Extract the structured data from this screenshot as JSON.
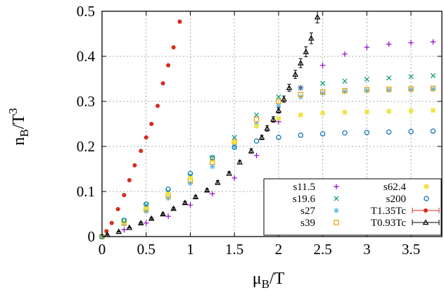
{
  "chart_data": {
    "type": "scatter",
    "title": "",
    "xlabel": {
      "main": "μ",
      "sub": "B",
      "tail": "/T"
    },
    "ylabel": {
      "main": "n",
      "sub": "B",
      "tail": "/T",
      "sup": "3"
    },
    "xlim": [
      0,
      3.85
    ],
    "ylim": [
      0,
      0.5
    ],
    "xticks": [
      0,
      0.5,
      1,
      1.5,
      2,
      2.5,
      3,
      3.5
    ],
    "xtick_labels": [
      "0",
      "0.5",
      "1",
      "1.5",
      "2",
      "2.5",
      "3",
      "3.5"
    ],
    "yticks": [
      0,
      0.1,
      0.2,
      0.3,
      0.4,
      0.5
    ],
    "ytick_labels": [
      "0",
      "0.1",
      "0.2",
      "0.3",
      "0.4",
      "0.5"
    ],
    "grid": true,
    "legend_position": "bottom-right",
    "series": [
      {
        "name": "s11.5",
        "color": "#9400d3",
        "marker": "plus",
        "x": [
          0,
          0.25,
          0.5,
          0.75,
          1.0,
          1.25,
          1.5,
          1.75,
          2.0,
          2.25,
          2.5,
          2.75,
          3.0,
          3.25,
          3.5,
          3.75
        ],
        "y": [
          0,
          0.015,
          0.03,
          0.045,
          0.07,
          0.095,
          0.13,
          0.18,
          0.255,
          0.33,
          0.38,
          0.405,
          0.42,
          0.427,
          0.43,
          0.432
        ]
      },
      {
        "name": "s19.6",
        "color": "#009e73",
        "marker": "cross",
        "x": [
          0,
          0.25,
          0.5,
          0.75,
          1.0,
          1.25,
          1.5,
          1.75,
          2.0,
          2.25,
          2.5,
          2.75,
          3.0,
          3.25,
          3.5,
          3.75
        ],
        "y": [
          0,
          0.035,
          0.07,
          0.1,
          0.135,
          0.175,
          0.22,
          0.27,
          0.31,
          0.33,
          0.34,
          0.345,
          0.349,
          0.352,
          0.355,
          0.357
        ]
      },
      {
        "name": "s27",
        "color": "#56b4e9",
        "marker": "star",
        "x": [
          0,
          0.25,
          0.5,
          0.75,
          1.0,
          1.25,
          1.5,
          1.75,
          2.0,
          2.25,
          2.5,
          2.75,
          3.0,
          3.25,
          3.5,
          3.75
        ],
        "y": [
          0,
          0.028,
          0.056,
          0.085,
          0.118,
          0.155,
          0.2,
          0.25,
          0.29,
          0.31,
          0.318,
          0.322,
          0.324,
          0.325,
          0.326,
          0.327
        ]
      },
      {
        "name": "s39",
        "color": "#e69f00",
        "marker": "square-open",
        "x": [
          0,
          0.25,
          0.5,
          0.75,
          1.0,
          1.25,
          1.5,
          1.75,
          2.0,
          2.25,
          2.5,
          2.75,
          3.0,
          3.25,
          3.5,
          3.75
        ],
        "y": [
          0,
          0.03,
          0.06,
          0.09,
          0.125,
          0.165,
          0.21,
          0.26,
          0.3,
          0.315,
          0.321,
          0.324,
          0.326,
          0.327,
          0.328,
          0.329
        ]
      },
      {
        "name": "s62.4",
        "color": "#f0e442",
        "marker": "square-filled",
        "x": [
          0,
          0.25,
          0.5,
          0.75,
          1.0,
          1.25,
          1.5,
          1.75,
          2.0,
          2.25,
          2.5,
          2.75,
          3.0,
          3.25,
          3.5,
          3.75
        ],
        "y": [
          0,
          0.032,
          0.064,
          0.095,
          0.13,
          0.17,
          0.21,
          0.245,
          0.262,
          0.27,
          0.274,
          0.276,
          0.277,
          0.278,
          0.279,
          0.28
        ]
      },
      {
        "name": "s200",
        "color": "#0072b2",
        "marker": "circle-open",
        "x": [
          0,
          0.25,
          0.5,
          0.75,
          1.0,
          1.25,
          1.5,
          1.75,
          2.0,
          2.25,
          2.5,
          2.75,
          3.0,
          3.25,
          3.5,
          3.75
        ],
        "y": [
          0,
          0.036,
          0.072,
          0.105,
          0.14,
          0.175,
          0.198,
          0.212,
          0.22,
          0.225,
          0.228,
          0.23,
          0.231,
          0.232,
          0.233,
          0.234
        ]
      },
      {
        "name": "T1.35Tc",
        "color": "#d62c1f",
        "marker": "circle-filled",
        "errorbars": true,
        "x": [
          0.05,
          0.11,
          0.18,
          0.25,
          0.31,
          0.37,
          0.44,
          0.5,
          0.56,
          0.63,
          0.69,
          0.75,
          0.81,
          0.88
        ],
        "y": [
          0.012,
          0.03,
          0.061,
          0.092,
          0.125,
          0.158,
          0.19,
          0.22,
          0.25,
          0.29,
          0.34,
          0.38,
          0.42,
          0.477
        ],
        "err": [
          0.002,
          0.002,
          0.002,
          0.002,
          0.002,
          0.002,
          0.002,
          0.002,
          0.002,
          0.002,
          0.002,
          0.002,
          0.002,
          0.003
        ]
      },
      {
        "name": "T0.93Tc",
        "color": "#000000",
        "marker": "triangle-open",
        "errorbars": true,
        "x": [
          0.06,
          0.19,
          0.31,
          0.44,
          0.56,
          0.69,
          0.81,
          0.94,
          1.06,
          1.19,
          1.31,
          1.44,
          1.56,
          1.69,
          1.81,
          1.87,
          1.94,
          2.0,
          2.06,
          2.12,
          2.19,
          2.25,
          2.31,
          2.37,
          2.44
        ],
        "y": [
          0.004,
          0.011,
          0.02,
          0.03,
          0.04,
          0.05,
          0.062,
          0.075,
          0.088,
          0.103,
          0.12,
          0.14,
          0.165,
          0.19,
          0.22,
          0.24,
          0.26,
          0.28,
          0.305,
          0.33,
          0.36,
          0.385,
          0.41,
          0.44,
          0.487
        ],
        "err": [
          0.001,
          0.001,
          0.001,
          0.002,
          0.002,
          0.002,
          0.002,
          0.003,
          0.003,
          0.003,
          0.004,
          0.004,
          0.004,
          0.005,
          0.005,
          0.006,
          0.006,
          0.006,
          0.007,
          0.008,
          0.009,
          0.01,
          0.011,
          0.012,
          0.013
        ]
      }
    ]
  }
}
